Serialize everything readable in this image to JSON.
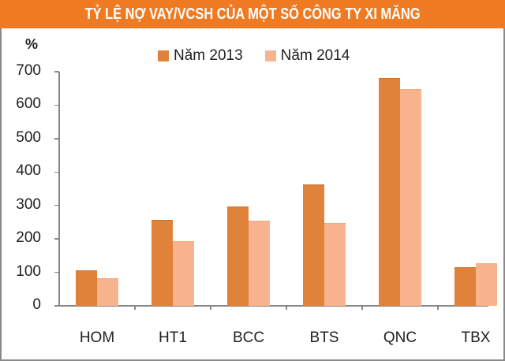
{
  "chart_data": {
    "type": "bar",
    "title": "TỶ LỆ NỢ VAY/VCSH CỦA MỘT SỐ CÔNG TY XI MĂNG",
    "xlabel": "",
    "ylabel": "%",
    "ylim": [
      0,
      700
    ],
    "yticks": [
      0,
      100,
      200,
      300,
      400,
      500,
      600,
      700
    ],
    "grid": false,
    "legend_position": "top",
    "categories": [
      "HOM",
      "HT1",
      "BCC",
      "BTS",
      "QNC",
      "TBX"
    ],
    "series": [
      {
        "name": "Năm 2013",
        "color": "#e0823a",
        "values": [
          106,
          258,
          296,
          364,
          681,
          116
        ]
      },
      {
        "name": "Năm 2014",
        "color": "#f8b48e",
        "values": [
          83,
          194,
          255,
          248,
          648,
          128
        ]
      }
    ]
  },
  "header": {
    "title": "TỶ LỆ NỢ VAY/VCSH CỦA MỘT SỐ CÔNG TY XI MĂNG",
    "color": "#f07a22"
  },
  "axis": {
    "unit_label": "%",
    "yticks": [
      "700",
      "600",
      "500",
      "400",
      "300",
      "200",
      "100",
      "0"
    ]
  },
  "legend": [
    {
      "label": "Năm 2013",
      "color": "#e0823a"
    },
    {
      "label": "Năm 2014",
      "color": "#f8b48e"
    }
  ]
}
